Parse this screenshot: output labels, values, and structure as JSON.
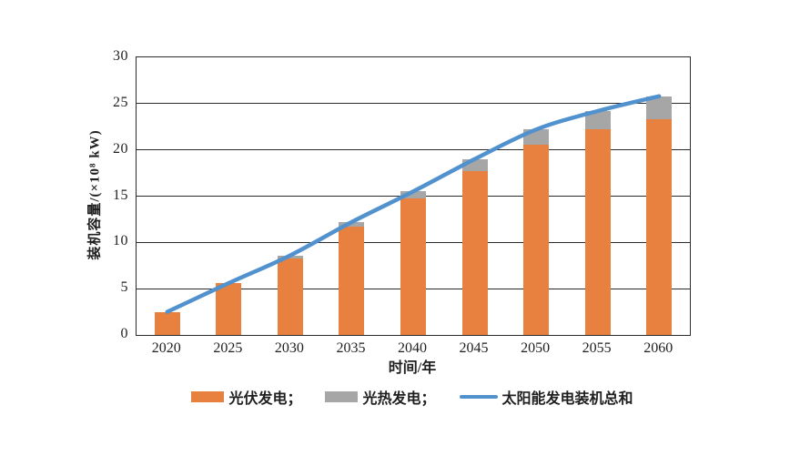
{
  "page": {
    "background": "#ffffff"
  },
  "colors": {
    "pv_orange": "#E8803F",
    "csp_gray": "#A6A6A6",
    "total_blue": "#5191CE",
    "axis": "#2b2b2b",
    "text": "#1f1f1f"
  },
  "chart_data": {
    "type": "bar",
    "subtype": "stacked-bars-with-line-overlay",
    "title": "",
    "xlabel": "时间/年",
    "ylabel": "装机容量/(×10⁸ kW)",
    "categories": [
      "2020",
      "2025",
      "2030",
      "2035",
      "2040",
      "2045",
      "2050",
      "2055",
      "2060"
    ],
    "series": [
      {
        "name": "光伏发电",
        "type": "bar-stack",
        "color": "#E8803F",
        "values": [
          2.5,
          5.6,
          8.3,
          11.7,
          14.8,
          17.7,
          20.6,
          22.2,
          23.3
        ]
      },
      {
        "name": "光热发电",
        "type": "bar-stack",
        "color": "#A6A6A6",
        "values": [
          0,
          0,
          0.3,
          0.5,
          0.7,
          1.3,
          1.6,
          2.0,
          2.5
        ]
      },
      {
        "name": "太阳能发电装机总和",
        "type": "line",
        "color": "#5191CE",
        "values": [
          2.5,
          5.6,
          8.6,
          12.2,
          15.5,
          19.0,
          22.2,
          24.2,
          25.8
        ]
      }
    ],
    "ylim": [
      0,
      30
    ],
    "yticks": [
      0,
      5,
      10,
      15,
      20,
      25,
      30
    ],
    "grid": "horizontal",
    "plot_border": "full-box",
    "legend_position": "bottom"
  },
  "legend": {
    "items": [
      {
        "label": "光伏发电；",
        "swatch": "rect"
      },
      {
        "label": "光热发电；",
        "swatch": "rect"
      },
      {
        "label": "太阳能发电装机总和",
        "swatch": "line"
      }
    ]
  }
}
